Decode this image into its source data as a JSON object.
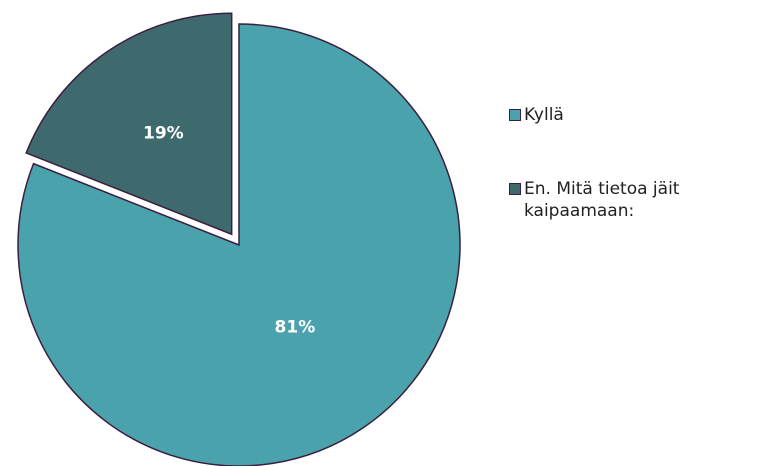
{
  "chart_data": {
    "type": "pie",
    "categories": [
      "Kyllä",
      "En. Mitä tietoa jäit kaipaamaan:"
    ],
    "values": [
      81,
      19
    ],
    "value_labels": [
      "81%",
      "19%"
    ],
    "colors": [
      "#4aa2ad",
      "#3f6a6d"
    ],
    "legend": "right"
  }
}
